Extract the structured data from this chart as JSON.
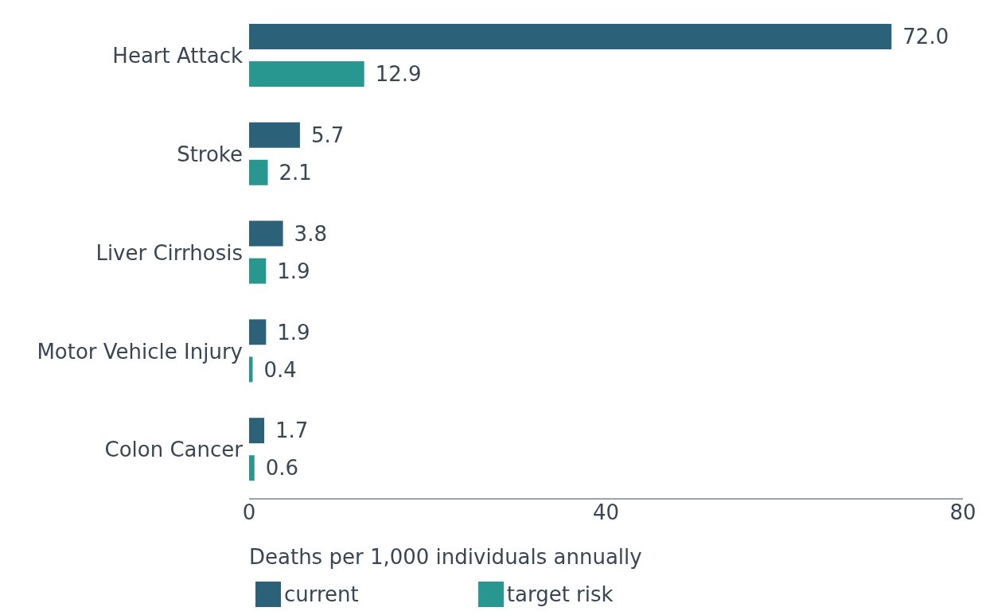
{
  "chart_data": {
    "type": "bar",
    "orientation": "horizontal",
    "categories": [
      "Heart Attack",
      "Stroke",
      "Liver Cirrhosis",
      "Motor Vehicle Injury",
      "Colon Cancer"
    ],
    "series": [
      {
        "name": "current",
        "color": "#2b6179",
        "values": [
          72.0,
          5.7,
          3.8,
          1.9,
          1.7
        ],
        "value_labels": [
          "72.0",
          "5.7",
          "3.8",
          "1.9",
          "1.7"
        ]
      },
      {
        "name": "target risk",
        "color": "#27978f",
        "values": [
          12.9,
          2.1,
          1.9,
          0.4,
          0.6
        ],
        "value_labels": [
          "12.9",
          "2.1",
          "1.9",
          "0.4",
          "0.6"
        ]
      }
    ],
    "xlim": [
      0,
      80
    ],
    "xticks": [
      0,
      40,
      80
    ],
    "xlabel": "Deaths per 1,000 individuals annually",
    "grid": false,
    "legend": "bottom left"
  }
}
